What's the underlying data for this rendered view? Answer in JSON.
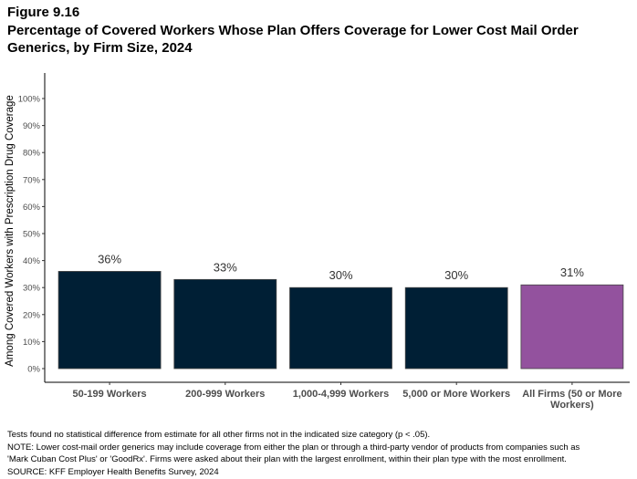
{
  "figure_label": "Figure 9.16",
  "title": "Percentage of Covered Workers Whose Plan Offers Coverage for Lower Cost Mail Order Generics, by Firm Size, 2024",
  "chart_data": {
    "type": "bar",
    "title": "Percentage of Covered Workers Whose Plan Offers Coverage for Lower Cost Mail Order Generics, by Firm Size, 2024",
    "categories": [
      "50-199 Workers",
      "200-999 Workers",
      "1,000-4,999 Workers",
      "5,000 or More Workers",
      "All Firms (50 or More Workers)"
    ],
    "values": [
      36,
      33,
      30,
      30,
      31
    ],
    "data_labels": [
      "36%",
      "33%",
      "30%",
      "30%",
      "31%"
    ],
    "colors": [
      "#001f35",
      "#001f35",
      "#001f35",
      "#001f35",
      "#93529e"
    ],
    "xlabel": "",
    "ylabel": "Among Covered Workers with Prescription Drug Coverage",
    "ylim": [
      0,
      100
    ],
    "yticks": [
      "0%",
      "10%",
      "20%",
      "30%",
      "40%",
      "50%",
      "60%",
      "70%",
      "80%",
      "90%",
      "100%"
    ],
    "grid": false
  },
  "notes": [
    "Tests found no statistical difference from estimate for all other firms not in the indicated size category (p < .05).",
    "NOTE: Lower cost-mail order generics may include coverage from either the plan or through a third-party vendor of products from companies such as",
    "'Mark Cuban Cost Plus' or 'GoodRx'.  Firms were asked about their plan with the largest enrollment, within their plan type with the most enrollment.",
    "SOURCE: KFF Employer Health Benefits Survey, 2024"
  ]
}
